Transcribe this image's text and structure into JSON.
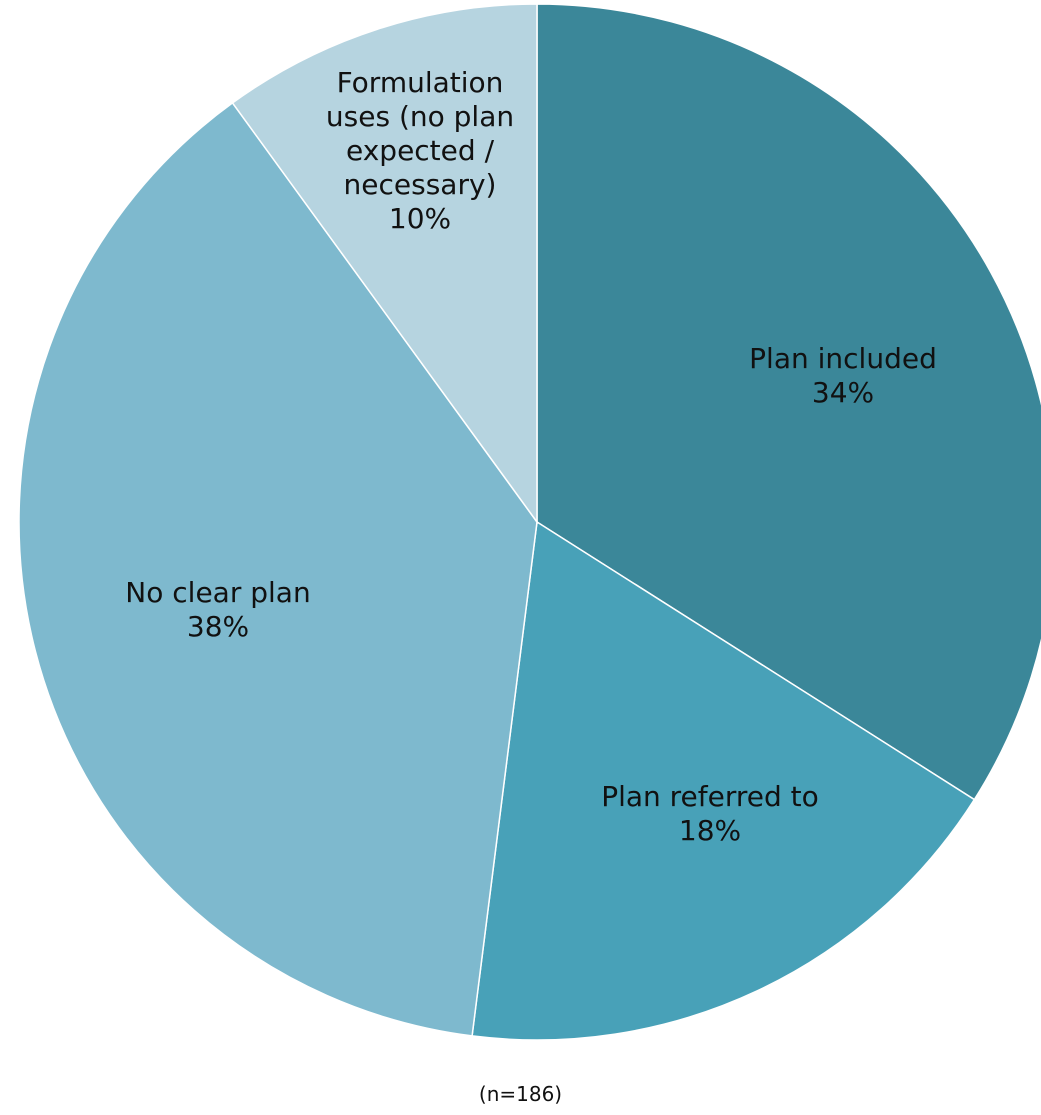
{
  "chart_data": {
    "type": "pie",
    "start_angle_deg": 0,
    "direction": "clockwise",
    "slices": [
      {
        "label": "Plan included",
        "value": 34,
        "value_label": "34%",
        "color": "#3B8799"
      },
      {
        "label": "Plan referred to",
        "value": 18,
        "value_label": "18%",
        "color": "#48A1B8"
      },
      {
        "label": "No clear plan",
        "value": 38,
        "value_label": "38%",
        "color": "#7EB9CE"
      },
      {
        "label": "Formulation uses (no plan expected / necessary)",
        "label_lines": [
          "Formulation",
          "uses (no plan",
          "expected /",
          "necessary)"
        ],
        "value": 10,
        "value_label": "10%",
        "color": "#B6D4E0"
      }
    ],
    "note": "(n=186)"
  }
}
